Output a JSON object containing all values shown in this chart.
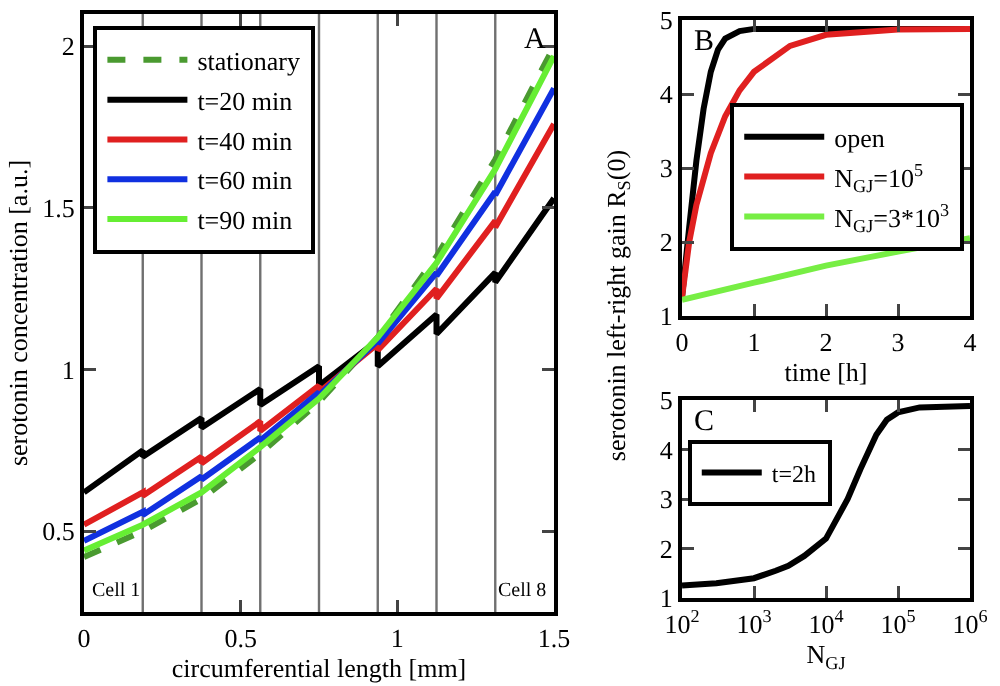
{
  "chart_data": [
    {
      "type": "line",
      "xlabel": "circumferential length [mm]",
      "ylabel": "serotonin concentration [a.u.]",
      "xlim": [
        0,
        1.5
      ],
      "ylim": [
        0.25,
        2.1
      ],
      "xticks": [
        0,
        0.5,
        1,
        1.5
      ],
      "yticks": [
        0.5,
        1,
        1.5,
        2
      ],
      "grid": false,
      "legend": "top left",
      "marker": "none",
      "annotations": [
        "A",
        "Cell 1",
        "Cell 8"
      ],
      "ref_lines": [
        {
          "axis": "x",
          "value": 0.1875,
          "label": null,
          "color": "#707070"
        },
        {
          "axis": "x",
          "value": 0.375,
          "label": null,
          "color": "#707070"
        },
        {
          "axis": "x",
          "value": 0.5625,
          "label": null,
          "color": "#707070"
        },
        {
          "axis": "x",
          "value": 0.75,
          "label": null,
          "color": "#707070"
        },
        {
          "axis": "x",
          "value": 0.9375,
          "label": null,
          "color": "#707070"
        },
        {
          "axis": "x",
          "value": 1.125,
          "label": null,
          "color": "#707070"
        },
        {
          "axis": "x",
          "value": 1.3125,
          "label": null,
          "color": "#707070"
        }
      ],
      "series": [
        {
          "name": "stationary",
          "color": "#4a9a30",
          "line_style": "dashed",
          "x": [
            0,
            0.1875,
            0.375,
            0.5625,
            0.75,
            0.9375,
            1.125,
            1.3125,
            1.5
          ],
          "values": [
            0.42,
            0.5,
            0.6,
            0.74,
            0.9,
            1.1,
            1.35,
            1.65,
            2.0
          ]
        },
        {
          "name": "t=20 min",
          "color": "#000000",
          "line_style": "solid",
          "x": [
            0,
            0.1875,
            0.1875,
            0.375,
            0.375,
            0.5625,
            0.5625,
            0.75,
            0.75,
            0.9375,
            0.9375,
            1.125,
            1.125,
            1.3125,
            1.3125,
            1.5
          ],
          "values": [
            0.62,
            0.75,
            0.73,
            0.85,
            0.82,
            0.94,
            0.89,
            1.01,
            0.95,
            1.09,
            1.01,
            1.17,
            1.11,
            1.3,
            1.27,
            1.53
          ]
        },
        {
          "name": "t=40 min",
          "color": "#e02020",
          "line_style": "solid",
          "x": [
            0,
            0.1875,
            0.1875,
            0.375,
            0.375,
            0.5625,
            0.5625,
            0.75,
            0.75,
            0.9375,
            0.9375,
            1.125,
            1.125,
            1.3125,
            1.3125,
            1.5
          ],
          "values": [
            0.52,
            0.62,
            0.61,
            0.73,
            0.71,
            0.84,
            0.81,
            0.95,
            0.93,
            1.08,
            1.06,
            1.25,
            1.22,
            1.46,
            1.44,
            1.76
          ]
        },
        {
          "name": "t=60 min",
          "color": "#1030e0",
          "line_style": "solid",
          "x": [
            0,
            0.1875,
            0.1875,
            0.375,
            0.375,
            0.5625,
            0.5625,
            0.75,
            0.75,
            0.9375,
            0.9375,
            1.125,
            1.125,
            1.3125,
            1.3125,
            1.5
          ],
          "values": [
            0.47,
            0.56,
            0.55,
            0.67,
            0.66,
            0.79,
            0.78,
            0.93,
            0.92,
            1.09,
            1.08,
            1.3,
            1.29,
            1.55,
            1.54,
            1.87
          ]
        },
        {
          "name": "t=90 min",
          "color": "#66ee33",
          "line_style": "solid",
          "x": [
            0,
            0.1875,
            0.375,
            0.5625,
            0.75,
            0.9375,
            1.125,
            1.3125,
            1.5
          ],
          "values": [
            0.44,
            0.52,
            0.62,
            0.76,
            0.91,
            1.1,
            1.33,
            1.62,
            1.97
          ]
        }
      ]
    },
    {
      "type": "line",
      "xlabel": "time [h]",
      "ylabel": "serotonin left-right gain R$_{S}$(0)",
      "xlim": [
        0,
        4
      ],
      "ylim": [
        1,
        5
      ],
      "xticks": [
        0,
        1,
        2,
        3,
        4
      ],
      "yticks": [
        1,
        2,
        3,
        4,
        5
      ],
      "grid": false,
      "legend": "right",
      "marker": "none",
      "annotations": [
        "B"
      ],
      "series": [
        {
          "name": "open",
          "color": "#000000",
          "x": [
            0,
            0.1,
            0.2,
            0.3,
            0.4,
            0.5,
            0.6,
            0.8,
            1,
            4
          ],
          "values": [
            1.25,
            2.2,
            3.1,
            3.8,
            4.3,
            4.6,
            4.75,
            4.85,
            4.88,
            4.88
          ]
        },
        {
          "name": "N$_{GJ}$=10$^{5}$",
          "color": "#e02020",
          "x": [
            0,
            0.1,
            0.2,
            0.4,
            0.6,
            0.8,
            1,
            1.5,
            2,
            3,
            4
          ],
          "values": [
            1.25,
            2.0,
            2.5,
            3.2,
            3.7,
            4.05,
            4.3,
            4.65,
            4.8,
            4.87,
            4.88
          ]
        },
        {
          "name": "N$_{GJ}$=3*10$^{3}$",
          "color": "#77ee44",
          "x": [
            0,
            1,
            2,
            3,
            4
          ],
          "values": [
            1.22,
            1.45,
            1.68,
            1.87,
            2.05
          ]
        }
      ]
    },
    {
      "type": "line",
      "xlabel": "N$_{GJ}$",
      "xlim": [
        100,
        1000000
      ],
      "ylim": [
        1,
        5
      ],
      "log": "x",
      "xticks": [
        {
          "value": 100,
          "label": "10$^{2}$"
        },
        {
          "value": 1000,
          "label": "10$^{3}$"
        },
        {
          "value": 10000,
          "label": "10$^{4}$"
        },
        {
          "value": 100000,
          "label": "10$^{5}$"
        },
        {
          "value": 1000000,
          "label": "10$^{6}$"
        }
      ],
      "yticks": [
        1,
        2,
        3,
        4,
        5
      ],
      "grid": false,
      "legend": "top left",
      "marker": "none",
      "annotations": [
        "C"
      ],
      "series": [
        {
          "name": "t=2h",
          "color": "#000000",
          "x": [
            100,
            300,
            1000,
            2000,
            3000,
            5000,
            10000,
            20000,
            30000,
            50000,
            70000,
            100000,
            200000,
            1000000
          ],
          "values": [
            1.25,
            1.3,
            1.4,
            1.55,
            1.65,
            1.85,
            2.2,
            3.0,
            3.6,
            4.3,
            4.6,
            4.75,
            4.85,
            4.88
          ]
        }
      ]
    }
  ]
}
